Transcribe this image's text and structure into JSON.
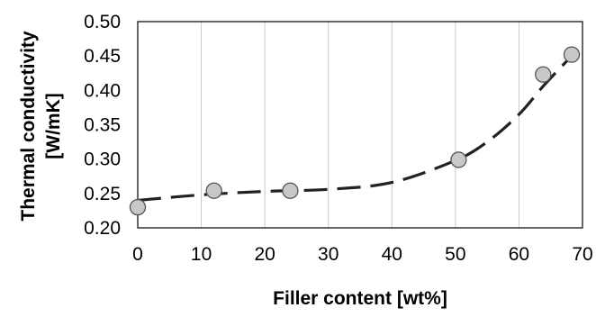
{
  "chart_data": {
    "type": "scatter",
    "title": "",
    "xlabel": "Filler content [wt%]",
    "ylabel_lines": [
      "Thermal conductivity",
      "[W/mK]"
    ],
    "xlim": [
      0,
      70
    ],
    "ylim": [
      0.2,
      0.5
    ],
    "x_ticks": [
      "0",
      "10",
      "20",
      "30",
      "40",
      "50",
      "60",
      "70"
    ],
    "y_ticks": [
      "0.20",
      "0.25",
      "0.30",
      "0.35",
      "0.40",
      "0.45",
      "0.50"
    ],
    "grid": "vertical",
    "series": [
      {
        "marker": "circle",
        "color": "#c8c8c8",
        "points": [
          {
            "x": 0,
            "y": 0.23
          },
          {
            "x": 12,
            "y": 0.254
          },
          {
            "x": 24,
            "y": 0.254
          },
          {
            "x": 50.5,
            "y": 0.299
          },
          {
            "x": 63.8,
            "y": 0.423
          },
          {
            "x": 68.3,
            "y": 0.452
          }
        ]
      }
    ],
    "trendline": {
      "style": "dashed",
      "color": "#222222",
      "points": [
        {
          "x": 0,
          "y": 0.24
        },
        {
          "x": 10,
          "y": 0.248
        },
        {
          "x": 20,
          "y": 0.253
        },
        {
          "x": 30,
          "y": 0.256
        },
        {
          "x": 40,
          "y": 0.266
        },
        {
          "x": 50,
          "y": 0.298
        },
        {
          "x": 55,
          "y": 0.325
        },
        {
          "x": 60,
          "y": 0.365
        },
        {
          "x": 64,
          "y": 0.408
        },
        {
          "x": 68.3,
          "y": 0.45
        }
      ]
    }
  }
}
